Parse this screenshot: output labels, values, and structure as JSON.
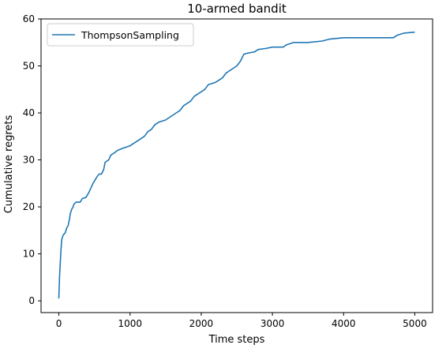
{
  "chart_data": {
    "type": "line",
    "title": "10-armed bandit",
    "xlabel": "Time steps",
    "ylabel": "Cumulative regrets",
    "xlim": [
      -250,
      5250
    ],
    "ylim": [
      -2.5,
      60
    ],
    "xticks": [
      0,
      1000,
      2000,
      3000,
      4000,
      5000
    ],
    "yticks": [
      0,
      10,
      20,
      30,
      40,
      50,
      60
    ],
    "grid": false,
    "legend_position": "upper-left",
    "series": [
      {
        "name": "ThompsonSampling",
        "color": "#1f77b4",
        "points": [
          [
            0,
            0.5
          ],
          [
            10,
            5
          ],
          [
            20,
            8
          ],
          [
            30,
            11
          ],
          [
            40,
            13
          ],
          [
            60,
            14
          ],
          [
            90,
            14.5
          ],
          [
            110,
            15.5
          ],
          [
            130,
            16
          ],
          [
            150,
            17.5
          ],
          [
            160,
            18.5
          ],
          [
            180,
            19.5
          ],
          [
            200,
            20
          ],
          [
            210,
            20.5
          ],
          [
            240,
            21
          ],
          [
            300,
            21
          ],
          [
            330,
            21.8
          ],
          [
            380,
            22
          ],
          [
            400,
            22.5
          ],
          [
            420,
            23
          ],
          [
            450,
            24
          ],
          [
            480,
            25
          ],
          [
            520,
            26
          ],
          [
            540,
            26.5
          ],
          [
            570,
            27
          ],
          [
            600,
            27
          ],
          [
            630,
            28
          ],
          [
            650,
            29.5
          ],
          [
            700,
            30
          ],
          [
            730,
            31
          ],
          [
            780,
            31.5
          ],
          [
            820,
            32
          ],
          [
            900,
            32.5
          ],
          [
            1000,
            33
          ],
          [
            1050,
            33.5
          ],
          [
            1100,
            34
          ],
          [
            1150,
            34.5
          ],
          [
            1200,
            35
          ],
          [
            1250,
            36
          ],
          [
            1300,
            36.5
          ],
          [
            1350,
            37.5
          ],
          [
            1400,
            38
          ],
          [
            1500,
            38.5
          ],
          [
            1550,
            39
          ],
          [
            1600,
            39.5
          ],
          [
            1650,
            40
          ],
          [
            1700,
            40.5
          ],
          [
            1750,
            41.5
          ],
          [
            1800,
            42
          ],
          [
            1850,
            42.5
          ],
          [
            1900,
            43.5
          ],
          [
            1950,
            44
          ],
          [
            2000,
            44.5
          ],
          [
            2050,
            45
          ],
          [
            2100,
            46
          ],
          [
            2200,
            46.5
          ],
          [
            2250,
            47
          ],
          [
            2300,
            47.5
          ],
          [
            2350,
            48.5
          ],
          [
            2400,
            49
          ],
          [
            2450,
            49.5
          ],
          [
            2500,
            50
          ],
          [
            2550,
            51
          ],
          [
            2600,
            52.5
          ],
          [
            2650,
            52.7
          ],
          [
            2750,
            53
          ],
          [
            2800,
            53.5
          ],
          [
            2900,
            53.7
          ],
          [
            3000,
            54
          ],
          [
            3150,
            54
          ],
          [
            3200,
            54.5
          ],
          [
            3300,
            55
          ],
          [
            3500,
            55
          ],
          [
            3700,
            55.3
          ],
          [
            3800,
            55.7
          ],
          [
            4000,
            56
          ],
          [
            4700,
            56
          ],
          [
            4750,
            56.5
          ],
          [
            4850,
            57
          ],
          [
            5000,
            57.2
          ]
        ]
      }
    ]
  }
}
